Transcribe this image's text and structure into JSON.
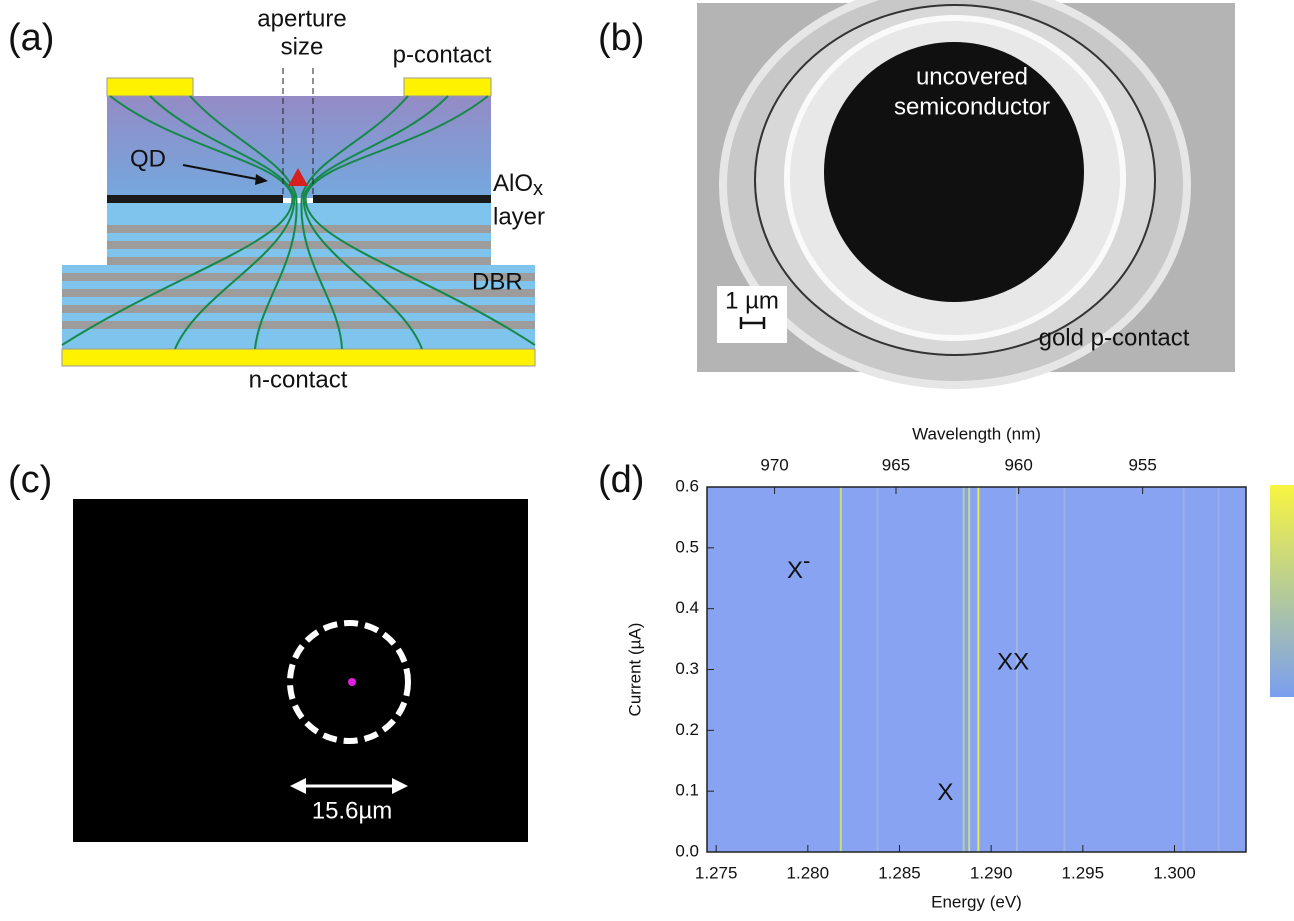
{
  "panel_a": {
    "label": "(a)",
    "aperture_line1": "aperture",
    "aperture_line2": "size",
    "p_contact": "p-contact",
    "qd": "QD",
    "alox": "AlO",
    "alox_sub": "x",
    "layer": "layer",
    "dbr": "DBR",
    "n_contact": "n-contact"
  },
  "panel_b": {
    "label": "(b)",
    "text_line1": "uncovered",
    "text_line2": "semiconductor",
    "scale": "1 µm",
    "gold": "gold p-contact"
  },
  "panel_c": {
    "label": "(c)",
    "scale": "15.6µm"
  },
  "panel_d": {
    "label": "(d)"
  },
  "chart_data": {
    "type": "heatmap",
    "xlabel": "Energy (eV)",
    "ylabel": "Current (µA)",
    "x2label": "Wavelength (nm)",
    "xlim": [
      1.2745,
      1.3039
    ],
    "ylim": [
      0,
      0.6
    ],
    "xticks": [
      {
        "value": 1.275,
        "label": "1.275"
      },
      {
        "value": 1.28,
        "label": "1.280"
      },
      {
        "value": 1.285,
        "label": "1.285"
      },
      {
        "value": 1.29,
        "label": "1.290"
      },
      {
        "value": 1.295,
        "label": "1.295"
      },
      {
        "value": 1.3,
        "label": "1.300"
      }
    ],
    "yticks": [
      {
        "value": 0,
        "label": "0.0"
      },
      {
        "value": 0.1,
        "label": "0.1"
      },
      {
        "value": 0.2,
        "label": "0.2"
      },
      {
        "value": 0.3,
        "label": "0.3"
      },
      {
        "value": 0.4,
        "label": "0.4"
      },
      {
        "value": 0.5,
        "label": "0.5"
      },
      {
        "value": 0.6,
        "label": "0.6"
      }
    ],
    "x2ticks": [
      970,
      965,
      960,
      955
    ],
    "background": "#87a3f2",
    "lines": [
      {
        "energy": 1.2818,
        "color": "#c8e070"
      },
      {
        "energy": 1.2838,
        "color": "#98b4e4"
      },
      {
        "energy": 1.2885,
        "color": "#b4cfa0"
      },
      {
        "energy": 1.2888,
        "color": "#c8d890"
      },
      {
        "energy": 1.2893,
        "color": "#e8e850"
      },
      {
        "energy": 1.2914,
        "color": "#a0b8e0"
      },
      {
        "energy": 1.294,
        "color": "#9ab2e6"
      },
      {
        "energy": 1.3005,
        "color": "#9ab0ea"
      },
      {
        "energy": 1.3024,
        "color": "#96aeea"
      }
    ],
    "annotations": [
      {
        "text": "X",
        "sup": "-",
        "x": 1.2795,
        "y": 0.46
      },
      {
        "text": "XX",
        "x": 1.2912,
        "y": 0.31
      },
      {
        "text": "X",
        "x": 1.2875,
        "y": 0.095
      }
    ]
  }
}
